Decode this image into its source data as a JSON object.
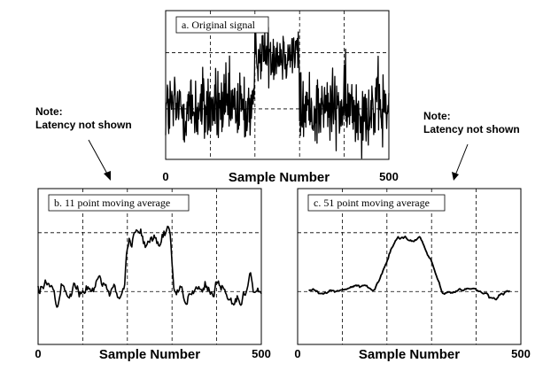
{
  "chart_data": [
    {
      "id": "a",
      "type": "line",
      "title": "a.  Original signal",
      "xlabel": "Sample Number",
      "x_ticks": [
        "0",
        "500"
      ],
      "xlim": [
        0,
        500
      ],
      "ylim": [
        -0.9,
        1.75
      ],
      "grid": true,
      "signal": {
        "kind": "noisy",
        "baseline": 0,
        "step_level": 1,
        "step_start": 200,
        "step_end": 300,
        "noise": 0.35
      }
    },
    {
      "id": "b",
      "type": "line",
      "title": "b.  11 point moving average",
      "xlabel": "Sample Number",
      "x_ticks": [
        "0",
        "500"
      ],
      "xlim": [
        0,
        500
      ],
      "ylim": [
        -0.9,
        1.75
      ],
      "grid": true,
      "signal": {
        "kind": "smoothed",
        "window": 11,
        "baseline": 0,
        "step_level": 1,
        "step_start": 200,
        "step_end": 300,
        "ramp": 11,
        "noise": 0.11
      }
    },
    {
      "id": "c",
      "type": "line",
      "title": "c.  51 point moving average",
      "xlabel": "Sample Number",
      "x_ticks": [
        "0",
        "500"
      ],
      "xlim": [
        0,
        500
      ],
      "ylim": [
        -0.9,
        1.75
      ],
      "grid": true,
      "signal": {
        "kind": "smoothed",
        "window": 51,
        "baseline": 0,
        "step_level": 1,
        "step_start": 200,
        "step_end": 300,
        "ramp": 51,
        "noise": 0.03
      }
    }
  ],
  "notes": {
    "left": {
      "line1": "Note:",
      "line2": "Latency not shown"
    },
    "right": {
      "line1": "Note:",
      "line2": "Latency not shown"
    }
  }
}
